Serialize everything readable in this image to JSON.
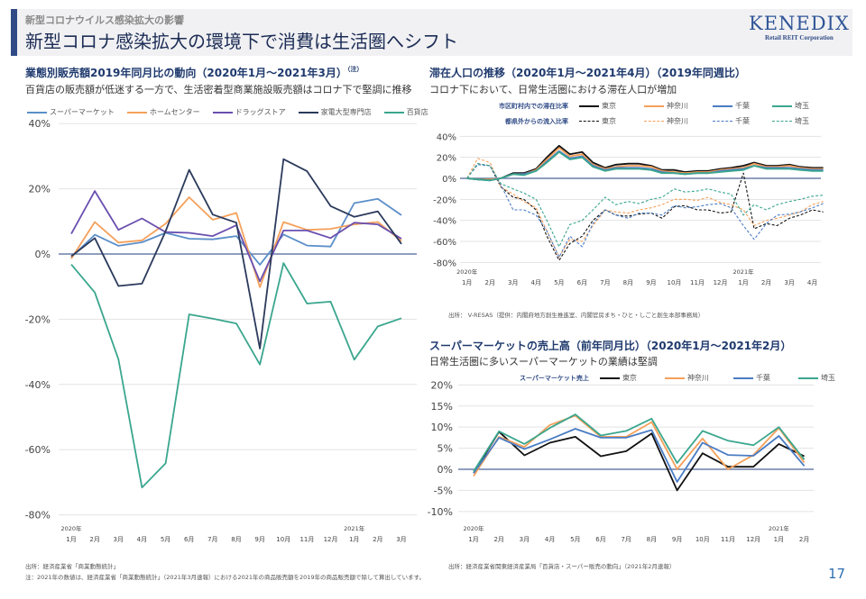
{
  "header": {
    "kicker": "新型コロナウイルス感染拡大の影響",
    "title": "新型コロナ感染拡大の環境下で消費は生活圏へシフト",
    "logo_main": "KENEDIX",
    "logo_sub": "Retail REIT Corporation"
  },
  "left_panel": {
    "title": "業態別販売額2019年同月比の動向（2020年1月～2021年3月）",
    "title_note": "（注）",
    "subtitle": "百貨店の販売額が低迷する一方で、生活密着型商業施設販売額はコロナ下で堅調に推移",
    "source": "出所：経済産業省「商業動態統計」",
    "note": "注：2021年の数値は、経済産業省「商業動態統計」（2021年3月速報）における2021年の商品販売額を2019年の商品販売額で除して算出しています。"
  },
  "mid_panel": {
    "title": "滞在人口の推移（2020年1月～2021年4月）（2019年同週比）",
    "subtitle": "コロナ下において、日常生活圏における滞在人口が増加",
    "legend_row1": "市区町村内での滞在比率",
    "legend_row2": "都県外からの流入比率",
    "source": "出所： V-RESAS（提供：内閣府地方創生推進室、内閣官房まち・ひと・しごと創生本部事務局）"
  },
  "bottom_panel": {
    "title": "スーパーマーケットの売上高（前年同月比）（2020年1月～2021年2月）",
    "subtitle": "日常生活圏に多いスーパーマーケットの業績は堅調",
    "legend_head": "スーパーマーケット売上",
    "source": "出所：経済産業省関東経済産業局「百貨店・スーパー販売の動向」（2021年2月速報）"
  },
  "page_number": "17",
  "chart_data": [
    {
      "type": "line",
      "categories": [
        "1月",
        "2月",
        "3月",
        "4月",
        "5月",
        "6月",
        "7月",
        "8月",
        "9月",
        "10月",
        "11月",
        "12月",
        "1月",
        "2月",
        "3月"
      ],
      "year_labels": [
        {
          "label": "2020年",
          "at": 0
        },
        {
          "label": "2021年",
          "at": 12
        }
      ],
      "ylim": [
        -80,
        40
      ],
      "yticks": [
        40,
        20,
        0,
        -20,
        -40,
        -60,
        -80
      ],
      "ytick_labels": [
        "40%",
        "20%",
        "0%",
        "-20%",
        "-40%",
        "-60%",
        "-80%"
      ],
      "grid": true,
      "legend": "top",
      "series": [
        {
          "name": "スーパーマーケット",
          "color": "#5b8fc9",
          "values": [
            -1,
            5.9,
            2.5,
            3.6,
            6.5,
            4.7,
            4.5,
            5.5,
            -3.3,
            6,
            2.6,
            2.3,
            15.6,
            16.9,
            11.9
          ]
        },
        {
          "name": "ホームセンター",
          "color": "#f5a05a",
          "values": [
            -1.4,
            9.8,
            3.5,
            4.2,
            9.3,
            17.4,
            10.5,
            12.6,
            -10.2,
            9.8,
            7.4,
            7.7,
            9.1,
            9.8,
            4
          ]
        },
        {
          "name": "ドラッグストア",
          "color": "#6a4fb0",
          "values": [
            6.2,
            19.3,
            7.4,
            10.9,
            6.7,
            6.5,
            5.5,
            8.8,
            -8.4,
            7.2,
            7.2,
            4.9,
            9.6,
            9.1,
            4.7
          ]
        },
        {
          "name": "家電大型専門店",
          "color": "#2b3a5c",
          "values": [
            -0.7,
            4.9,
            -9.8,
            -9.1,
            7,
            25.8,
            12.1,
            9.6,
            -29,
            29.1,
            25.4,
            14.7,
            11.4,
            13.1,
            3.1
          ]
        },
        {
          "name": "百貨店",
          "color": "#3aa68e",
          "values": [
            -3.2,
            -11.8,
            -32.3,
            -71.6,
            -64.2,
            -18.5,
            -19.8,
            -21.3,
            -33.9,
            -2.8,
            -15.2,
            -14.6,
            -32.4,
            -22.2,
            -19.7
          ]
        }
      ]
    },
    {
      "type": "line",
      "x": [
        "2020-01-01",
        "2020-01-15",
        "2020-02-01",
        "2020-02-15",
        "2020-03-01",
        "2020-03-15",
        "2020-04-01",
        "2020-04-15",
        "2020-05-01",
        "2020-05-15",
        "2020-06-01",
        "2020-06-15",
        "2020-07-01",
        "2020-07-15",
        "2020-08-01",
        "2020-08-15",
        "2020-09-01",
        "2020-09-15",
        "2020-10-01",
        "2020-10-15",
        "2020-11-01",
        "2020-11-15",
        "2020-12-01",
        "2020-12-15",
        "2021-01-01",
        "2021-01-15",
        "2021-02-01",
        "2021-02-15",
        "2021-03-01",
        "2021-03-15",
        "2021-04-01",
        "2021-04-15"
      ],
      "xtick_labels": [
        "1月",
        "2月",
        "3月",
        "4月",
        "5月",
        "6月",
        "7月",
        "8月",
        "9月",
        "10月",
        "11月",
        "12月",
        "1月",
        "2月",
        "3月",
        "4月"
      ],
      "year_labels": [
        {
          "label": "2020年",
          "at": 0
        },
        {
          "label": "2021年",
          "at": 12
        }
      ],
      "ylim": [
        -80,
        40
      ],
      "yticks": [
        40,
        20,
        0,
        -20,
        -40,
        -60,
        -80
      ],
      "ytick_labels": [
        "40%",
        "20%",
        "0%",
        "-20%",
        "-40%",
        "-60%",
        "-80%"
      ],
      "grid": true,
      "legend": "top",
      "series": [
        {
          "group": "市区町村内での滞在比率",
          "name": "東京",
          "color": "#111111",
          "dashed": false,
          "values": [
            0,
            -1,
            -1,
            0,
            5,
            5,
            9,
            20,
            31,
            23,
            25,
            15,
            10,
            13,
            14,
            14,
            12,
            8,
            8,
            6,
            7,
            7,
            9,
            10,
            12,
            15,
            12,
            12,
            13,
            11,
            10,
            10
          ]
        },
        {
          "group": "市区町村内での滞在比率",
          "name": "神奈川",
          "color": "#f5a05a",
          "dashed": false,
          "values": [
            0,
            -1,
            -1,
            0,
            4,
            4,
            8,
            18,
            29,
            21,
            23,
            13,
            9,
            11,
            12,
            12,
            11,
            7,
            6,
            5,
            6,
            6,
            8,
            9,
            10,
            14,
            11,
            11,
            12,
            10,
            9,
            9
          ]
        },
        {
          "group": "市区町村内での滞在比率",
          "name": "千葉",
          "color": "#4a7cc4",
          "dashed": false,
          "values": [
            0,
            -1,
            -2,
            0,
            4,
            4,
            7,
            16,
            26,
            19,
            21,
            12,
            8,
            10,
            10,
            10,
            9,
            6,
            5,
            4,
            5,
            5,
            7,
            8,
            9,
            12,
            10,
            10,
            10,
            9,
            8,
            8
          ]
        },
        {
          "group": "市区町村内での滞在比率",
          "name": "埼玉",
          "color": "#3aa68e",
          "dashed": false,
          "values": [
            0,
            -1,
            -2,
            0,
            4,
            3,
            7,
            15,
            25,
            18,
            20,
            11,
            7,
            9,
            9,
            9,
            8,
            5,
            5,
            4,
            5,
            5,
            6,
            7,
            8,
            12,
            9,
            9,
            9,
            8,
            7,
            7
          ]
        },
        {
          "group": "都県外からの流入比率",
          "name": "東京",
          "color": "#111111",
          "dashed": true,
          "values": [
            0,
            14,
            12,
            -8,
            -18,
            -20,
            -30,
            -55,
            -78,
            -62,
            -55,
            -40,
            -30,
            -35,
            -36,
            -34,
            -33,
            -38,
            -27,
            -26,
            -30,
            -30,
            -33,
            -32,
            5,
            -48,
            -43,
            -45,
            -38,
            -35,
            -30,
            -32
          ]
        },
        {
          "group": "都県外からの流入比率",
          "name": "神奈川",
          "color": "#f5a05a",
          "dashed": true,
          "values": [
            0,
            19,
            15,
            -8,
            -15,
            -22,
            -28,
            -50,
            -75,
            -58,
            -60,
            -45,
            -30,
            -32,
            -33,
            -30,
            -28,
            -25,
            -20,
            -20,
            -21,
            -18,
            -23,
            -25,
            -30,
            -45,
            -40,
            -38,
            -35,
            -32,
            -25,
            -22
          ]
        },
        {
          "group": "都県外からの流入比率",
          "name": "千葉",
          "color": "#4a7cc4",
          "dashed": true,
          "values": [
            0,
            13,
            12,
            -6,
            -30,
            -30,
            -35,
            -50,
            -75,
            -55,
            -65,
            -43,
            -30,
            -35,
            -38,
            -33,
            -33,
            -35,
            -26,
            -28,
            -27,
            -25,
            -24,
            -28,
            -45,
            -58,
            -43,
            -35,
            -34,
            -32,
            -28,
            -24
          ]
        },
        {
          "group": "都県外からの流入比率",
          "name": "埼玉",
          "color": "#3aa68e",
          "dashed": true,
          "values": [
            0,
            14,
            12,
            -5,
            -10,
            -14,
            -20,
            -40,
            -65,
            -44,
            -40,
            -30,
            -18,
            -25,
            -22,
            -24,
            -20,
            -18,
            -10,
            -13,
            -12,
            -10,
            -13,
            -15,
            -35,
            -25,
            -30,
            -25,
            -22,
            -20,
            -17,
            -16
          ]
        }
      ]
    },
    {
      "type": "line",
      "categories": [
        "1月",
        "2月",
        "3月",
        "4月",
        "5月",
        "6月",
        "7月",
        "8月",
        "9月",
        "10月",
        "11月",
        "12月",
        "1月",
        "2月"
      ],
      "year_labels": [
        {
          "label": "2020年",
          "at": 0
        },
        {
          "label": "2021年",
          "at": 12
        }
      ],
      "ylim": [
        -10,
        20
      ],
      "yticks": [
        20,
        15,
        10,
        5,
        0,
        -5,
        -10
      ],
      "ytick_labels": [
        "20%",
        "15%",
        "10%",
        "5%",
        "0%",
        "-5%",
        "-10%"
      ],
      "grid": true,
      "legend": "top",
      "series": [
        {
          "name": "東京",
          "color": "#111111",
          "values": [
            -0.9,
            8.9,
            3.3,
            6.3,
            7.7,
            3.1,
            4.3,
            8.5,
            -5,
            3.8,
            0.6,
            0.6,
            6,
            3.1
          ]
        },
        {
          "name": "神奈川",
          "color": "#f5a05a",
          "values": [
            -1.6,
            7.7,
            5.3,
            10.5,
            12.7,
            7.7,
            7.7,
            11.2,
            0,
            7.3,
            0,
            3.4,
            9.8,
            1.6
          ]
        },
        {
          "name": "千葉",
          "color": "#4a7cc4",
          "values": [
            -0.9,
            7.5,
            4.8,
            7.1,
            9.6,
            7.5,
            7.5,
            9.3,
            -3,
            6.3,
            3.4,
            3.2,
            7.9,
            0.8
          ]
        },
        {
          "name": "埼玉",
          "color": "#3aa68e",
          "values": [
            -0.5,
            9,
            6,
            9.8,
            13,
            8,
            9.1,
            12,
            1.5,
            9.1,
            6.8,
            5.7,
            10,
            2.3
          ]
        }
      ]
    }
  ]
}
